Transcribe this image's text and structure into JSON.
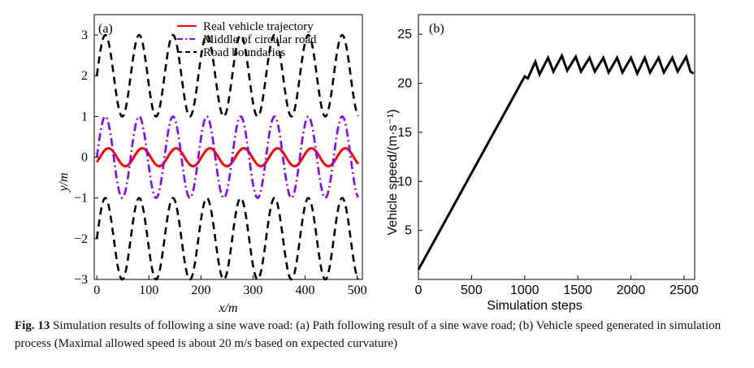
{
  "caption": {
    "label": "Fig. 13",
    "text": "Simulation results of following a sine wave road: (a) Path following result of a sine wave road; (b) Vehicle speed generated in simulation process (Maximal allowed speed is about 20 m/s based on expected curvature)"
  },
  "chart_data": [
    {
      "panel": "(a)",
      "type": "line",
      "title": "",
      "xlabel": "x/m",
      "ylabel": "y/m",
      "xlim": [
        -5,
        510
      ],
      "ylim": [
        -3,
        3.5
      ],
      "xticks": [
        0,
        100,
        200,
        300,
        400,
        500
      ],
      "yticks": [
        -3,
        -2,
        -1,
        0,
        1,
        2,
        3
      ],
      "legend_position": "top-right",
      "period": 65,
      "series": [
        {
          "name": "Real vehicle trajectory",
          "color": "#ff0000",
          "style": "solid",
          "offset": 0,
          "amplitude": 0.22,
          "phase_shift": 6
        },
        {
          "name": "Middle of circular road",
          "color": "#8800ff",
          "style": "dashdot",
          "offset": 0,
          "amplitude": 1.0
        },
        {
          "name": "Road boundaries",
          "color": "#000000",
          "style": "dashed",
          "offset": 2,
          "amplitude": 1.0
        },
        {
          "name": "Road boundaries (lower)",
          "color": "#000000",
          "style": "dashed",
          "offset": -2,
          "amplitude": 1.0,
          "in_legend": false
        }
      ]
    },
    {
      "panel": "(b)",
      "type": "line",
      "title": "",
      "xlabel": "Simulation steps",
      "ylabel": "Vehicle speed/(m·s⁻¹)",
      "xlim": [
        0,
        2600
      ],
      "ylim": [
        0,
        27
      ],
      "xticks": [
        0,
        500,
        1000,
        1500,
        2000,
        2500
      ],
      "yticks": [
        5,
        10,
        15,
        20,
        25
      ],
      "series": [
        {
          "name": "Vehicle speed",
          "color": "#000000",
          "style": "solid",
          "points": [
            [
              0,
              1
            ],
            [
              1000,
              20.7
            ],
            [
              1030,
              20.5
            ],
            [
              1100,
              22.2
            ],
            [
              1140,
              20.9
            ],
            [
              1220,
              22.6
            ],
            [
              1270,
              21.2
            ],
            [
              1350,
              22.8
            ],
            [
              1400,
              21.3
            ],
            [
              1480,
              22.7
            ],
            [
              1530,
              21.2
            ],
            [
              1610,
              22.6
            ],
            [
              1660,
              21.2
            ],
            [
              1740,
              22.6
            ],
            [
              1790,
              21.1
            ],
            [
              1870,
              22.6
            ],
            [
              1920,
              21.1
            ],
            [
              2000,
              22.6
            ],
            [
              2060,
              21.0
            ],
            [
              2130,
              22.6
            ],
            [
              2180,
              21.1
            ],
            [
              2260,
              22.6
            ],
            [
              2310,
              21.1
            ],
            [
              2390,
              22.6
            ],
            [
              2440,
              21.2
            ],
            [
              2520,
              22.7
            ],
            [
              2560,
              21.2
            ],
            [
              2590,
              21.0
            ]
          ]
        }
      ]
    }
  ]
}
